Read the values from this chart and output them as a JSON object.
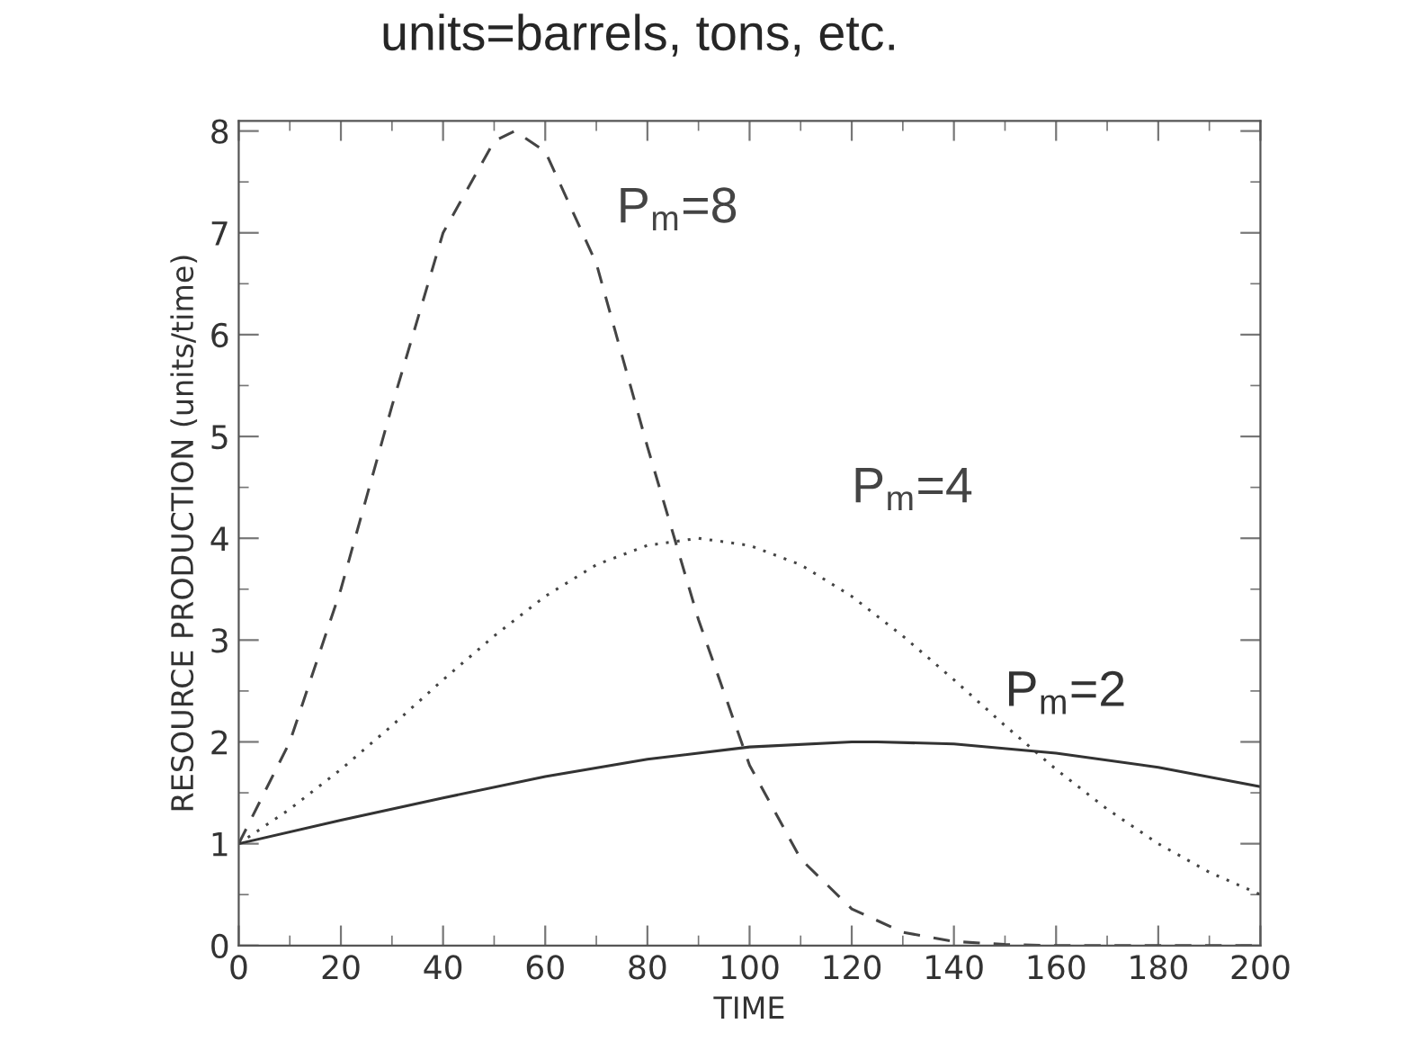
{
  "chart_data": {
    "type": "line",
    "title": "units=barrels, tons, etc.",
    "xlabel": "TIME",
    "ylabel": "RESOURCE PRODUCTION (units/time)",
    "xlim": [
      0,
      200
    ],
    "xticks": [
      0,
      20,
      40,
      60,
      80,
      100,
      120,
      140,
      160,
      180,
      200
    ],
    "ylim": [
      0,
      8.1
    ],
    "yticks": [
      0,
      1,
      2,
      3,
      4,
      5,
      6,
      7,
      8
    ],
    "grid": false,
    "legend": false,
    "series": [
      {
        "name": "P$_{m}$=8",
        "color": "#444444",
        "line_style": "dashed",
        "x": [
          0,
          10,
          20,
          30,
          40,
          50,
          54,
          60,
          70,
          80,
          90,
          100,
          110,
          120,
          130,
          140,
          150,
          160,
          170,
          180,
          190,
          200
        ],
        "values": [
          1.0,
          2.0,
          3.5,
          5.3,
          7.0,
          7.9,
          8.0,
          7.8,
          6.7,
          4.9,
          3.2,
          1.77,
          0.85,
          0.36,
          0.13,
          0.04,
          0.01,
          0,
          0,
          0,
          0,
          0
        ]
      },
      {
        "name": "P$_{m}$=4",
        "color": "#444444",
        "line_style": "dotted",
        "x": [
          0,
          10,
          20,
          30,
          40,
          50,
          60,
          70,
          80,
          90,
          100,
          110,
          120,
          130,
          140,
          150,
          160,
          170,
          180,
          190,
          200
        ],
        "values": [
          1.0,
          1.34,
          1.73,
          2.16,
          2.61,
          3.04,
          3.43,
          3.74,
          3.93,
          4.0,
          3.93,
          3.74,
          3.43,
          3.04,
          2.61,
          2.16,
          1.73,
          1.34,
          1.0,
          0.72,
          0.5
        ]
      },
      {
        "name": "P$_{m}$=2",
        "color": "#333333",
        "line_style": "solid",
        "x": [
          0,
          20,
          40,
          60,
          80,
          100,
          120,
          125,
          140,
          160,
          180,
          200
        ],
        "values": [
          1.0,
          1.23,
          1.45,
          1.66,
          1.83,
          1.95,
          2.0,
          2.0,
          1.98,
          1.89,
          1.75,
          1.56
        ]
      }
    ]
  }
}
